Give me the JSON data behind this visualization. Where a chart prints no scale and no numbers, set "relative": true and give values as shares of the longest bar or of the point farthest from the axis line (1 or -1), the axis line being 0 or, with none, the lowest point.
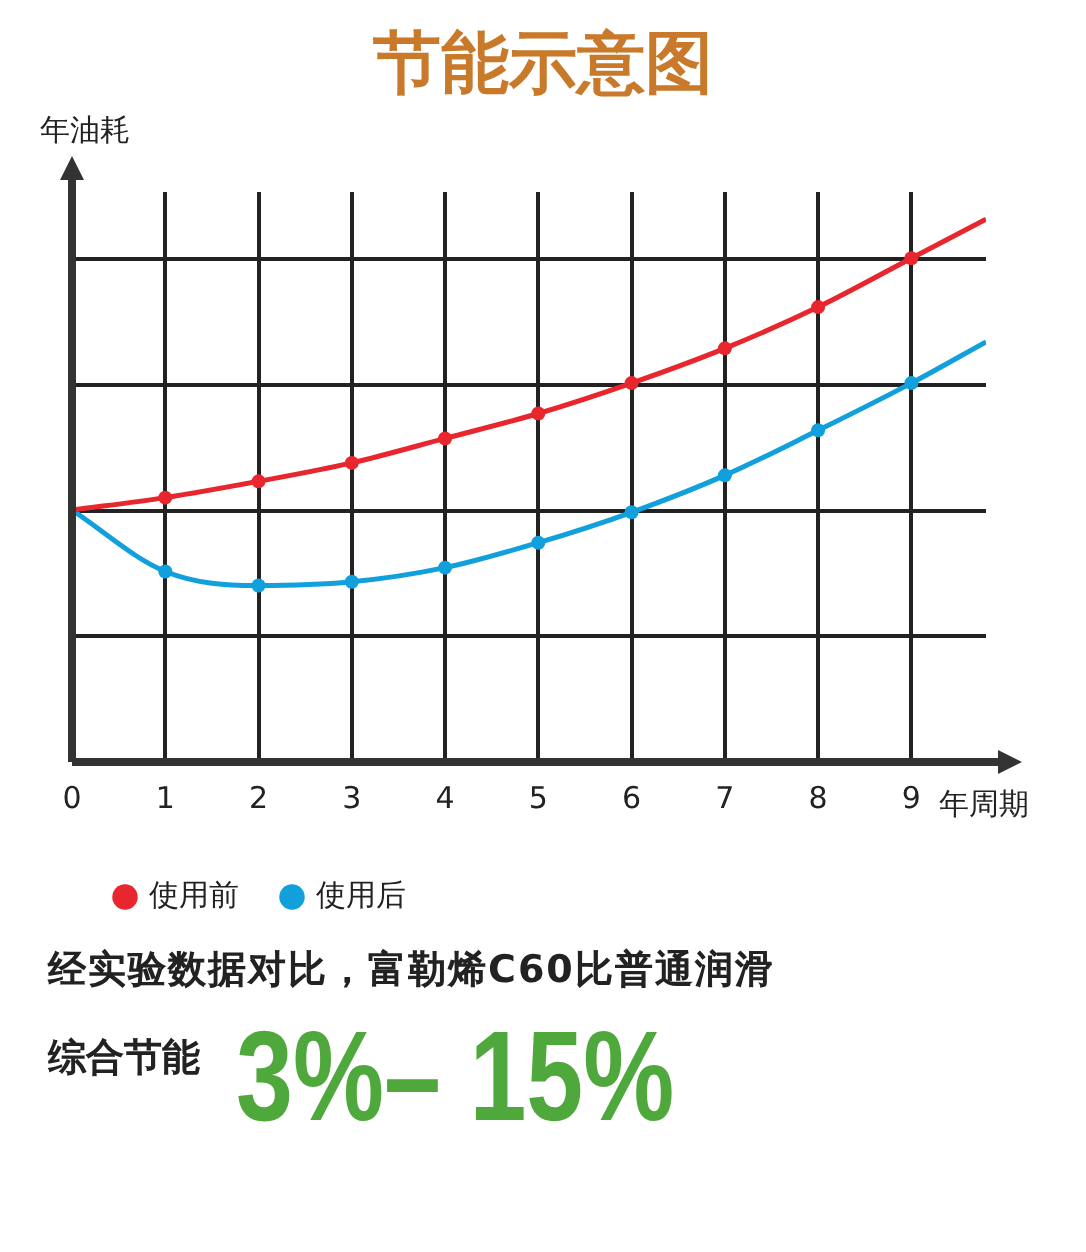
{
  "chart_data": {
    "type": "line",
    "title": "节能示意图",
    "xlabel": "年周期",
    "ylabel": "年油耗",
    "relative": true,
    "x": [
      0,
      1,
      2,
      3,
      4,
      5,
      6,
      7,
      8,
      9,
      9.8
    ],
    "series": [
      {
        "name": "使用前",
        "color": "#e8262d",
        "values": [
          0.464,
          0.487,
          0.517,
          0.551,
          0.596,
          0.642,
          0.698,
          0.762,
          0.838,
          0.928,
          1
        ]
      },
      {
        "name": "使用后",
        "color": "#11a0dc",
        "values": [
          0.464,
          0.351,
          0.325,
          0.332,
          0.358,
          0.404,
          0.46,
          0.528,
          0.611,
          0.698,
          0.774
        ]
      }
    ],
    "xlim": [
      0,
      9.8
    ],
    "xticks": [
      0,
      1,
      2,
      3,
      4,
      5,
      6,
      7,
      8,
      9
    ],
    "grid": true,
    "legend": "bottom",
    "marker": "circle",
    "line_style": "solid",
    "annotations": [
      "经实验数据对比，富勒烯C60比普通润滑",
      "综合节能",
      "3%– 15%"
    ]
  }
}
